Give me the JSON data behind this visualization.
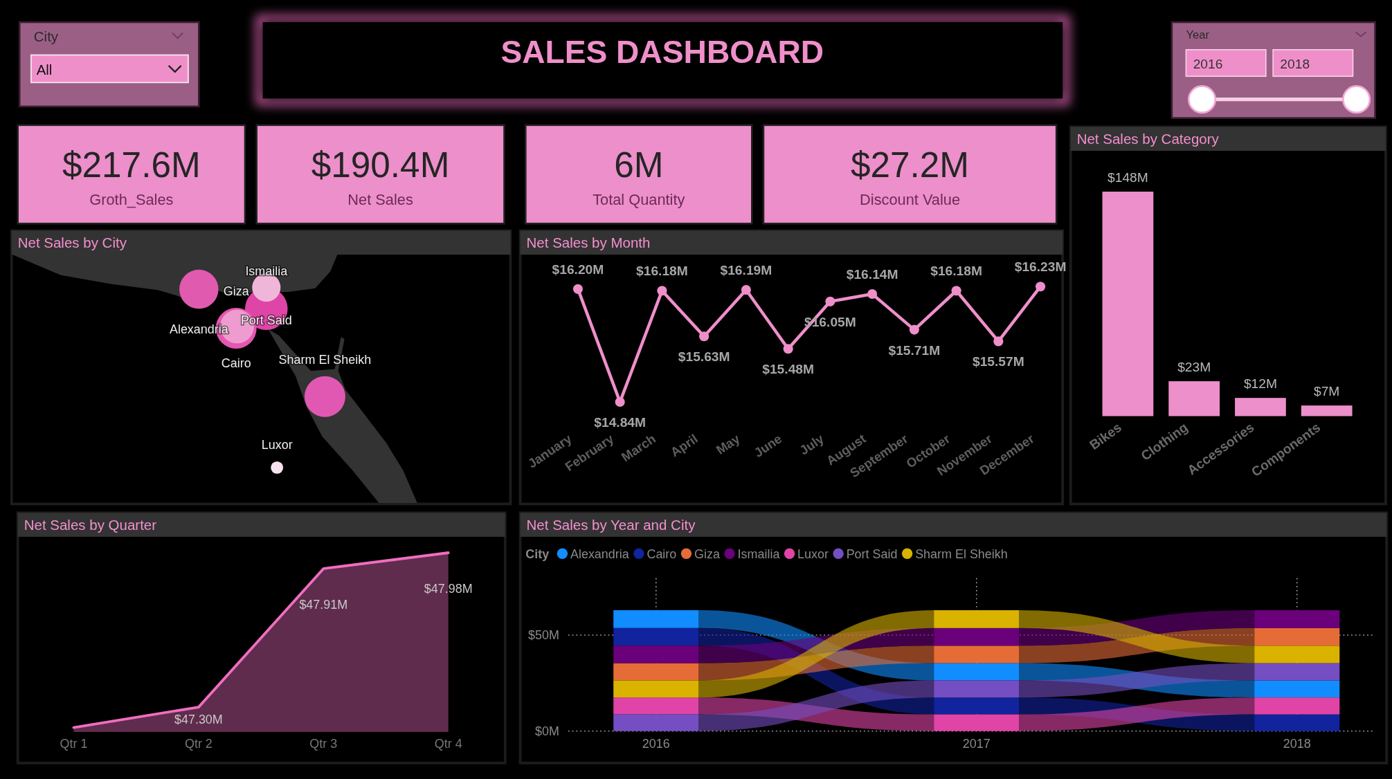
{
  "chart_data": [
    {
      "type": "other",
      "title": "SALES DASHBOARD",
      "annotations": [
        "City",
        "All",
        "Year",
        "2016",
        "2018"
      ]
    },
    {
      "type": "other",
      "annotations": [
        "$217.6M",
        "Groth_Sales",
        "$190.4M",
        "Net Sales",
        "6M",
        "Total Quantity",
        "$27.2M",
        "Discount Value"
      ]
    },
    {
      "type": "bar",
      "title": "Net Sales by Category",
      "categories": [
        "Bikes",
        "Clothing",
        "Accessories",
        "Components"
      ],
      "values": [
        148,
        23,
        12,
        7
      ],
      "value_labels": [
        "$148M",
        "$23M",
        "$12M",
        "$7M"
      ],
      "color": "#ec8fca"
    },
    {
      "type": "other",
      "title": "Net Sales by City",
      "categories": [
        "Ismailia",
        "Giza",
        "Port Said",
        "Alexandria",
        "Cairo",
        "Sharm El Sheikh",
        "Luxor"
      ]
    },
    {
      "type": "line",
      "title": "Net Sales by Month",
      "categories": [
        "January",
        "February",
        "March",
        "April",
        "May",
        "June",
        "July",
        "August",
        "September",
        "October",
        "November",
        "December"
      ],
      "values": [
        16.2,
        14.84,
        16.18,
        15.63,
        16.19,
        15.48,
        16.05,
        16.14,
        15.71,
        16.18,
        15.57,
        16.23
      ],
      "value_labels": [
        "$16.20M",
        "$14.84M",
        "$16.18M",
        "$15.63M",
        "$16.19M",
        "$15.48M",
        "$16.05M",
        "$16.14M",
        "$15.71M",
        "$16.18M",
        "$15.57M",
        "$16.23M"
      ],
      "color": "#ef8fca",
      "marker": "circle"
    },
    {
      "type": "area",
      "title": "Net Sales by Quarter",
      "categories": [
        "Qtr 1",
        "Qtr 2",
        "Qtr 3",
        "Qtr 4"
      ],
      "values": [
        47.21,
        47.3,
        47.91,
        47.98
      ],
      "value_labels": [
        null,
        "$47.30M",
        "$47.91M",
        "$47.98M"
      ],
      "color": "#f06ec0"
    },
    {
      "type": "bar",
      "title": "Net Sales by Year and City",
      "stacked": true,
      "legend": "top left",
      "legend_title": "City",
      "categories": [
        "2016",
        "2017",
        "2018"
      ],
      "series": [
        {
          "name": "Alexandria",
          "color": "#118dff",
          "values": [
            9.3,
            9.0,
            8.9
          ]
        },
        {
          "name": "Cairo",
          "color": "#12239e",
          "values": [
            9.2,
            8.8,
            8.7
          ]
        },
        {
          "name": "Giza",
          "color": "#e66c37",
          "values": [
            9.0,
            9.1,
            9.2
          ]
        },
        {
          "name": "Ismailia",
          "color": "#6b007b",
          "values": [
            9.1,
            9.2,
            9.3
          ]
        },
        {
          "name": "Luxor",
          "color": "#e044a7",
          "values": [
            8.8,
            8.7,
            8.8
          ]
        },
        {
          "name": "Port Said",
          "color": "#744ec2",
          "values": [
            8.7,
            8.9,
            9.0
          ]
        },
        {
          "name": "Sharm El Sheikh",
          "color": "#d9b300",
          "values": [
            8.9,
            9.3,
            9.1
          ]
        }
      ],
      "ylim": [
        0,
        80
      ],
      "yticks": [
        {
          "value": 0,
          "label": "$0M"
        },
        {
          "value": 50,
          "label": "$50M"
        }
      ],
      "grid": true
    }
  ]
}
